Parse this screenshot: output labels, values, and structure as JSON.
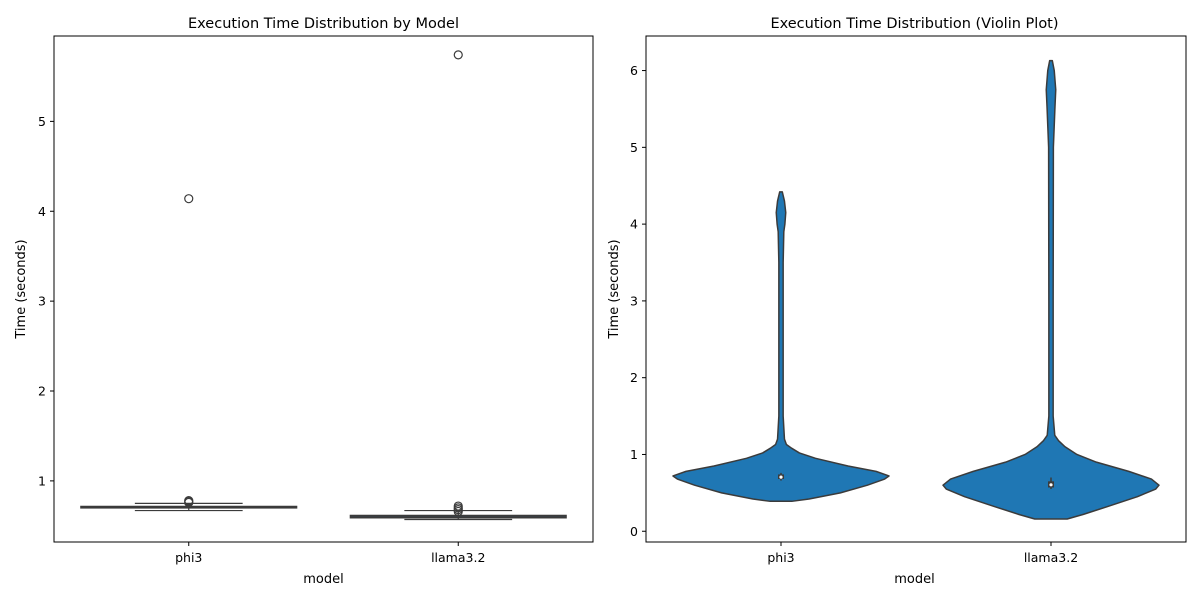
{
  "figure": {
    "background": "#ffffff"
  },
  "chart_data": [
    {
      "type": "box",
      "title": "Execution Time Distribution by Model",
      "xlabel": "model",
      "ylabel": "Time (seconds)",
      "categories": [
        "phi3",
        "llama3.2"
      ],
      "ylim": [
        0.32,
        5.95
      ],
      "yticks": [
        1,
        2,
        3,
        4,
        5
      ],
      "color": "#1f77b4",
      "boxes": [
        {
          "category": "phi3",
          "whisker_low": 0.67,
          "q1": 0.7,
          "median": 0.71,
          "q3": 0.715,
          "whisker_high": 0.75,
          "outliers": [
            0.76,
            0.77,
            0.78,
            4.14
          ]
        },
        {
          "category": "llama3.2",
          "whisker_low": 0.57,
          "q1": 0.59,
          "median": 0.6,
          "q3": 0.615,
          "whisker_high": 0.67,
          "outliers": [
            0.66,
            0.68,
            0.7,
            0.72,
            5.74
          ]
        }
      ]
    },
    {
      "type": "violin",
      "title": "Execution Time Distribution (Violin Plot)",
      "xlabel": "model",
      "ylabel": "Time (seconds)",
      "categories": [
        "phi3",
        "llama3.2"
      ],
      "ylim": [
        -0.14,
        6.45
      ],
      "yticks": [
        0,
        1,
        2,
        3,
        4,
        5,
        6
      ],
      "color": "#1f77b4",
      "violins": [
        {
          "category": "phi3",
          "q1": 0.68,
          "median": 0.705,
          "q3": 0.74,
          "whisker_low": 0.66,
          "whisker_high": 0.76,
          "profile": [
            [
              0.39,
              0.1
            ],
            [
              0.42,
              0.26
            ],
            [
              0.5,
              0.55
            ],
            [
              0.6,
              0.8
            ],
            [
              0.68,
              0.96
            ],
            [
              0.72,
              1.0
            ],
            [
              0.78,
              0.88
            ],
            [
              0.85,
              0.62
            ],
            [
              0.95,
              0.32
            ],
            [
              1.02,
              0.17
            ],
            [
              1.08,
              0.1
            ],
            [
              1.13,
              0.05
            ],
            [
              1.2,
              0.032
            ],
            [
              1.5,
              0.02
            ],
            [
              2.5,
              0.02
            ],
            [
              3.5,
              0.02
            ],
            [
              3.9,
              0.026
            ],
            [
              4.0,
              0.036
            ],
            [
              4.15,
              0.044
            ],
            [
              4.3,
              0.032
            ],
            [
              4.42,
              0.012
            ]
          ]
        },
        {
          "category": "llama3.2",
          "q1": 0.57,
          "median": 0.605,
          "q3": 0.65,
          "whisker_low": 0.55,
          "whisker_high": 0.7,
          "profile": [
            [
              0.16,
              0.15
            ],
            [
              0.22,
              0.3
            ],
            [
              0.32,
              0.52
            ],
            [
              0.45,
              0.8
            ],
            [
              0.55,
              0.97
            ],
            [
              0.6,
              1.0
            ],
            [
              0.68,
              0.93
            ],
            [
              0.78,
              0.72
            ],
            [
              0.9,
              0.42
            ],
            [
              1.0,
              0.24
            ],
            [
              1.1,
              0.13
            ],
            [
              1.18,
              0.07
            ],
            [
              1.25,
              0.035
            ],
            [
              1.5,
              0.02
            ],
            [
              3.0,
              0.02
            ],
            [
              5.0,
              0.022
            ],
            [
              5.5,
              0.036
            ],
            [
              5.75,
              0.044
            ],
            [
              6.0,
              0.03
            ],
            [
              6.13,
              0.012
            ]
          ]
        }
      ]
    }
  ]
}
